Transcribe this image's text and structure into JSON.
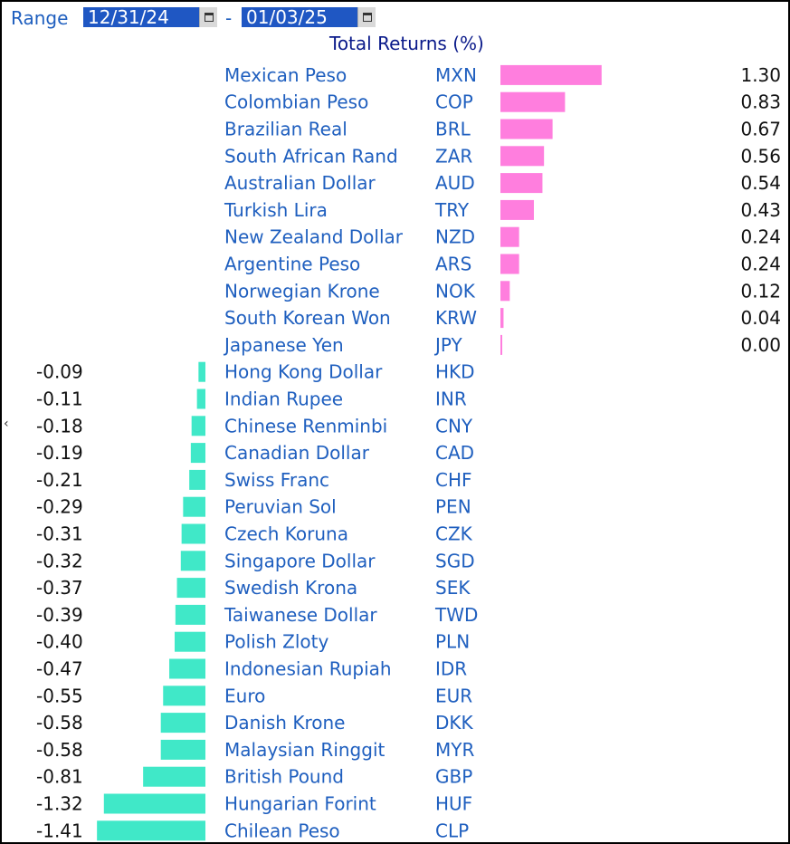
{
  "toolbar": {
    "range_label": "Range",
    "start_date": "12/31/24",
    "separator": "-",
    "end_date": "01/03/25",
    "left_edge_tick": "‹"
  },
  "colors": {
    "positive": "#ff7ede",
    "negative": "#40e8c8",
    "label": "#1f5fbf",
    "title": "#0a1a8a",
    "date_bg": "#1f57c3"
  },
  "icons": [
    "calendar-icon"
  ],
  "chart_data": {
    "type": "bar",
    "orientation": "horizontal",
    "title": "Total Returns (%)",
    "rows": [
      {
        "name": "Mexican Peso",
        "code": "MXN",
        "value": 1.3,
        "label": "1.30"
      },
      {
        "name": "Colombian Peso",
        "code": "COP",
        "value": 0.83,
        "label": "0.83"
      },
      {
        "name": "Brazilian Real",
        "code": "BRL",
        "value": 0.67,
        "label": "0.67"
      },
      {
        "name": "South African Rand",
        "code": "ZAR",
        "value": 0.56,
        "label": "0.56"
      },
      {
        "name": "Australian Dollar",
        "code": "AUD",
        "value": 0.54,
        "label": "0.54"
      },
      {
        "name": "Turkish Lira",
        "code": "TRY",
        "value": 0.43,
        "label": "0.43"
      },
      {
        "name": "New Zealand Dollar",
        "code": "NZD",
        "value": 0.24,
        "label": "0.24"
      },
      {
        "name": "Argentine Peso",
        "code": "ARS",
        "value": 0.24,
        "label": "0.24"
      },
      {
        "name": "Norwegian Krone",
        "code": "NOK",
        "value": 0.12,
        "label": "0.12"
      },
      {
        "name": "South Korean Won",
        "code": "KRW",
        "value": 0.04,
        "label": "0.04"
      },
      {
        "name": "Japanese Yen",
        "code": "JPY",
        "value": 0.0,
        "label": "0.00"
      },
      {
        "name": "Hong Kong Dollar",
        "code": "HKD",
        "value": -0.09,
        "label": "-0.09"
      },
      {
        "name": "Indian Rupee",
        "code": "INR",
        "value": -0.11,
        "label": "-0.11"
      },
      {
        "name": "Chinese Renminbi",
        "code": "CNY",
        "value": -0.18,
        "label": "-0.18"
      },
      {
        "name": "Canadian Dollar",
        "code": "CAD",
        "value": -0.19,
        "label": "-0.19"
      },
      {
        "name": "Swiss Franc",
        "code": "CHF",
        "value": -0.21,
        "label": "-0.21"
      },
      {
        "name": "Peruvian Sol",
        "code": "PEN",
        "value": -0.29,
        "label": "-0.29"
      },
      {
        "name": "Czech Koruna",
        "code": "CZK",
        "value": -0.31,
        "label": "-0.31"
      },
      {
        "name": "Singapore Dollar",
        "code": "SGD",
        "value": -0.32,
        "label": "-0.32"
      },
      {
        "name": "Swedish Krona",
        "code": "SEK",
        "value": -0.37,
        "label": "-0.37"
      },
      {
        "name": "Taiwanese Dollar",
        "code": "TWD",
        "value": -0.39,
        "label": "-0.39"
      },
      {
        "name": "Polish Zloty",
        "code": "PLN",
        "value": -0.4,
        "label": "-0.40"
      },
      {
        "name": "Indonesian Rupiah",
        "code": "IDR",
        "value": -0.47,
        "label": "-0.47"
      },
      {
        "name": "Euro",
        "code": "EUR",
        "value": -0.55,
        "label": "-0.55"
      },
      {
        "name": "Danish Krone",
        "code": "DKK",
        "value": -0.58,
        "label": "-0.58"
      },
      {
        "name": "Malaysian Ringgit",
        "code": "MYR",
        "value": -0.58,
        "label": "-0.58"
      },
      {
        "name": "British Pound",
        "code": "GBP",
        "value": -0.81,
        "label": "-0.81"
      },
      {
        "name": "Hungarian Forint",
        "code": "HUF",
        "value": -1.32,
        "label": "-1.32"
      },
      {
        "name": "Chilean Peso",
        "code": "CLP",
        "value": -1.41,
        "label": "-1.41"
      }
    ]
  }
}
